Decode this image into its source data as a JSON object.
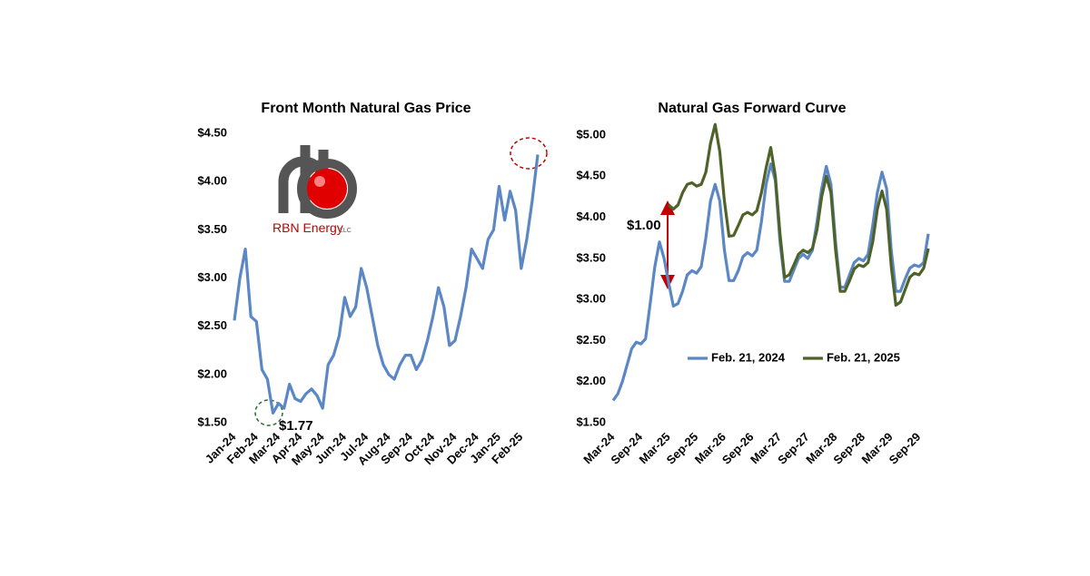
{
  "logo": {
    "name": "RBN Energy",
    "suffix": "LLC"
  },
  "chart_data": [
    {
      "type": "line",
      "title": "Front Month Natural Gas Price",
      "categories": [
        "Jan-24",
        null,
        null,
        null,
        "Feb-24",
        null,
        null,
        null,
        "Mar-24",
        null,
        null,
        null,
        "Apr-24",
        null,
        null,
        null,
        "May-24",
        null,
        null,
        null,
        "Jun-24",
        null,
        null,
        null,
        "Jul-24",
        null,
        null,
        null,
        "Aug-24",
        null,
        null,
        null,
        "Sep-24",
        null,
        null,
        null,
        "Oct-24",
        null,
        null,
        null,
        "Nov-24",
        null,
        null,
        null,
        "Dec-24",
        null,
        null,
        null,
        "Jan-25",
        null,
        null,
        null,
        "Feb-25",
        null,
        null,
        null
      ],
      "series": [
        {
          "name": "Front Month",
          "color": "#5b87c5",
          "values": [
            2.56,
            3.0,
            3.3,
            2.6,
            2.55,
            2.05,
            1.95,
            1.6,
            1.7,
            1.65,
            1.9,
            1.75,
            1.72,
            1.8,
            1.85,
            1.78,
            1.65,
            2.1,
            2.2,
            2.4,
            2.8,
            2.6,
            2.7,
            3.1,
            2.9,
            2.6,
            2.3,
            2.1,
            2.0,
            1.95,
            2.1,
            2.2,
            2.2,
            2.05,
            2.15,
            2.35,
            2.6,
            2.9,
            2.7,
            2.3,
            2.35,
            2.6,
            2.9,
            3.3,
            3.2,
            3.1,
            3.4,
            3.5,
            3.95,
            3.6,
            3.9,
            3.7,
            3.1,
            3.4,
            3.8,
            4.28
          ]
        }
      ],
      "ylim": [
        1.5,
        4.5
      ],
      "yticks": [
        {
          "value": 1.5,
          "label": "$1.50"
        },
        {
          "value": 2,
          "label": "$2.00"
        },
        {
          "value": 2.5,
          "label": "$2.50"
        },
        {
          "value": 3,
          "label": "$3.00"
        },
        {
          "value": 3.5,
          "label": "$3.50"
        },
        {
          "value": 4,
          "label": "$4.00"
        },
        {
          "value": 4.5,
          "label": "$4.50"
        }
      ],
      "annotations": [
        "$1.77"
      ]
    },
    {
      "type": "line",
      "title": "Natural Gas Forward Curve",
      "categories": [
        "Mar-24",
        null,
        null,
        null,
        null,
        null,
        "Sep-24",
        null,
        null,
        null,
        null,
        null,
        "Mar-25",
        null,
        null,
        null,
        null,
        null,
        "Sep-25",
        null,
        null,
        null,
        null,
        null,
        "Mar-26",
        null,
        null,
        null,
        null,
        null,
        "Sep-26",
        null,
        null,
        null,
        null,
        null,
        "Mar-27",
        null,
        null,
        null,
        null,
        null,
        "Sep-27",
        null,
        null,
        null,
        null,
        null,
        "Mar-28",
        null,
        null,
        null,
        null,
        null,
        "Sep-28",
        null,
        null,
        null,
        null,
        null,
        "Mar-29",
        null,
        null,
        null,
        null,
        null,
        "Sep-29",
        null,
        null
      ],
      "series": [
        {
          "name": "Feb. 21, 2024",
          "color": "#5b87c5",
          "values": [
            1.77,
            1.85,
            2.0,
            2.2,
            2.4,
            2.48,
            2.46,
            2.52,
            2.95,
            3.4,
            3.7,
            3.5,
            3.2,
            2.92,
            2.95,
            3.1,
            3.3,
            3.35,
            3.32,
            3.4,
            3.75,
            4.2,
            4.4,
            4.2,
            3.6,
            3.23,
            3.23,
            3.35,
            3.52,
            3.57,
            3.53,
            3.6,
            3.95,
            4.4,
            4.65,
            4.45,
            3.7,
            3.22,
            3.22,
            3.36,
            3.5,
            3.55,
            3.5,
            3.6,
            3.95,
            4.35,
            4.62,
            4.4,
            3.7,
            3.15,
            3.15,
            3.3,
            3.45,
            3.5,
            3.47,
            3.55,
            3.9,
            4.3,
            4.55,
            4.35,
            3.6,
            3.1,
            3.1,
            3.25,
            3.38,
            3.42,
            3.4,
            3.45,
            3.8
          ]
        },
        {
          "name": "Feb. 21, 2025",
          "color": "#4f6228",
          "values": [
            null,
            null,
            null,
            null,
            null,
            null,
            null,
            null,
            null,
            null,
            null,
            null,
            4.15,
            4.1,
            4.15,
            4.3,
            4.4,
            4.42,
            4.38,
            4.4,
            4.55,
            4.9,
            5.13,
            4.8,
            4.2,
            3.77,
            3.78,
            3.9,
            4.03,
            4.06,
            4.03,
            4.08,
            4.3,
            4.6,
            4.85,
            4.5,
            3.8,
            3.27,
            3.3,
            3.42,
            3.55,
            3.6,
            3.57,
            3.62,
            3.85,
            4.25,
            4.5,
            4.3,
            3.6,
            3.1,
            3.1,
            3.23,
            3.37,
            3.42,
            3.4,
            3.45,
            3.7,
            4.1,
            4.32,
            4.1,
            3.4,
            2.93,
            2.97,
            3.12,
            3.27,
            3.32,
            3.3,
            3.38,
            3.62
          ]
        }
      ],
      "ylim": [
        1.5,
        5.0
      ],
      "yticks": [
        {
          "value": 1.5,
          "label": "$1.50"
        },
        {
          "value": 2,
          "label": "$2.00"
        },
        {
          "value": 2.5,
          "label": "$2.50"
        },
        {
          "value": 3,
          "label": "$3.00"
        },
        {
          "value": 3.5,
          "label": "$3.50"
        },
        {
          "value": 4,
          "label": "$4.00"
        },
        {
          "value": 4.5,
          "label": "$4.50"
        },
        {
          "value": 5,
          "label": "$5.00"
        }
      ],
      "annotations": [
        "$1.00"
      ]
    }
  ]
}
